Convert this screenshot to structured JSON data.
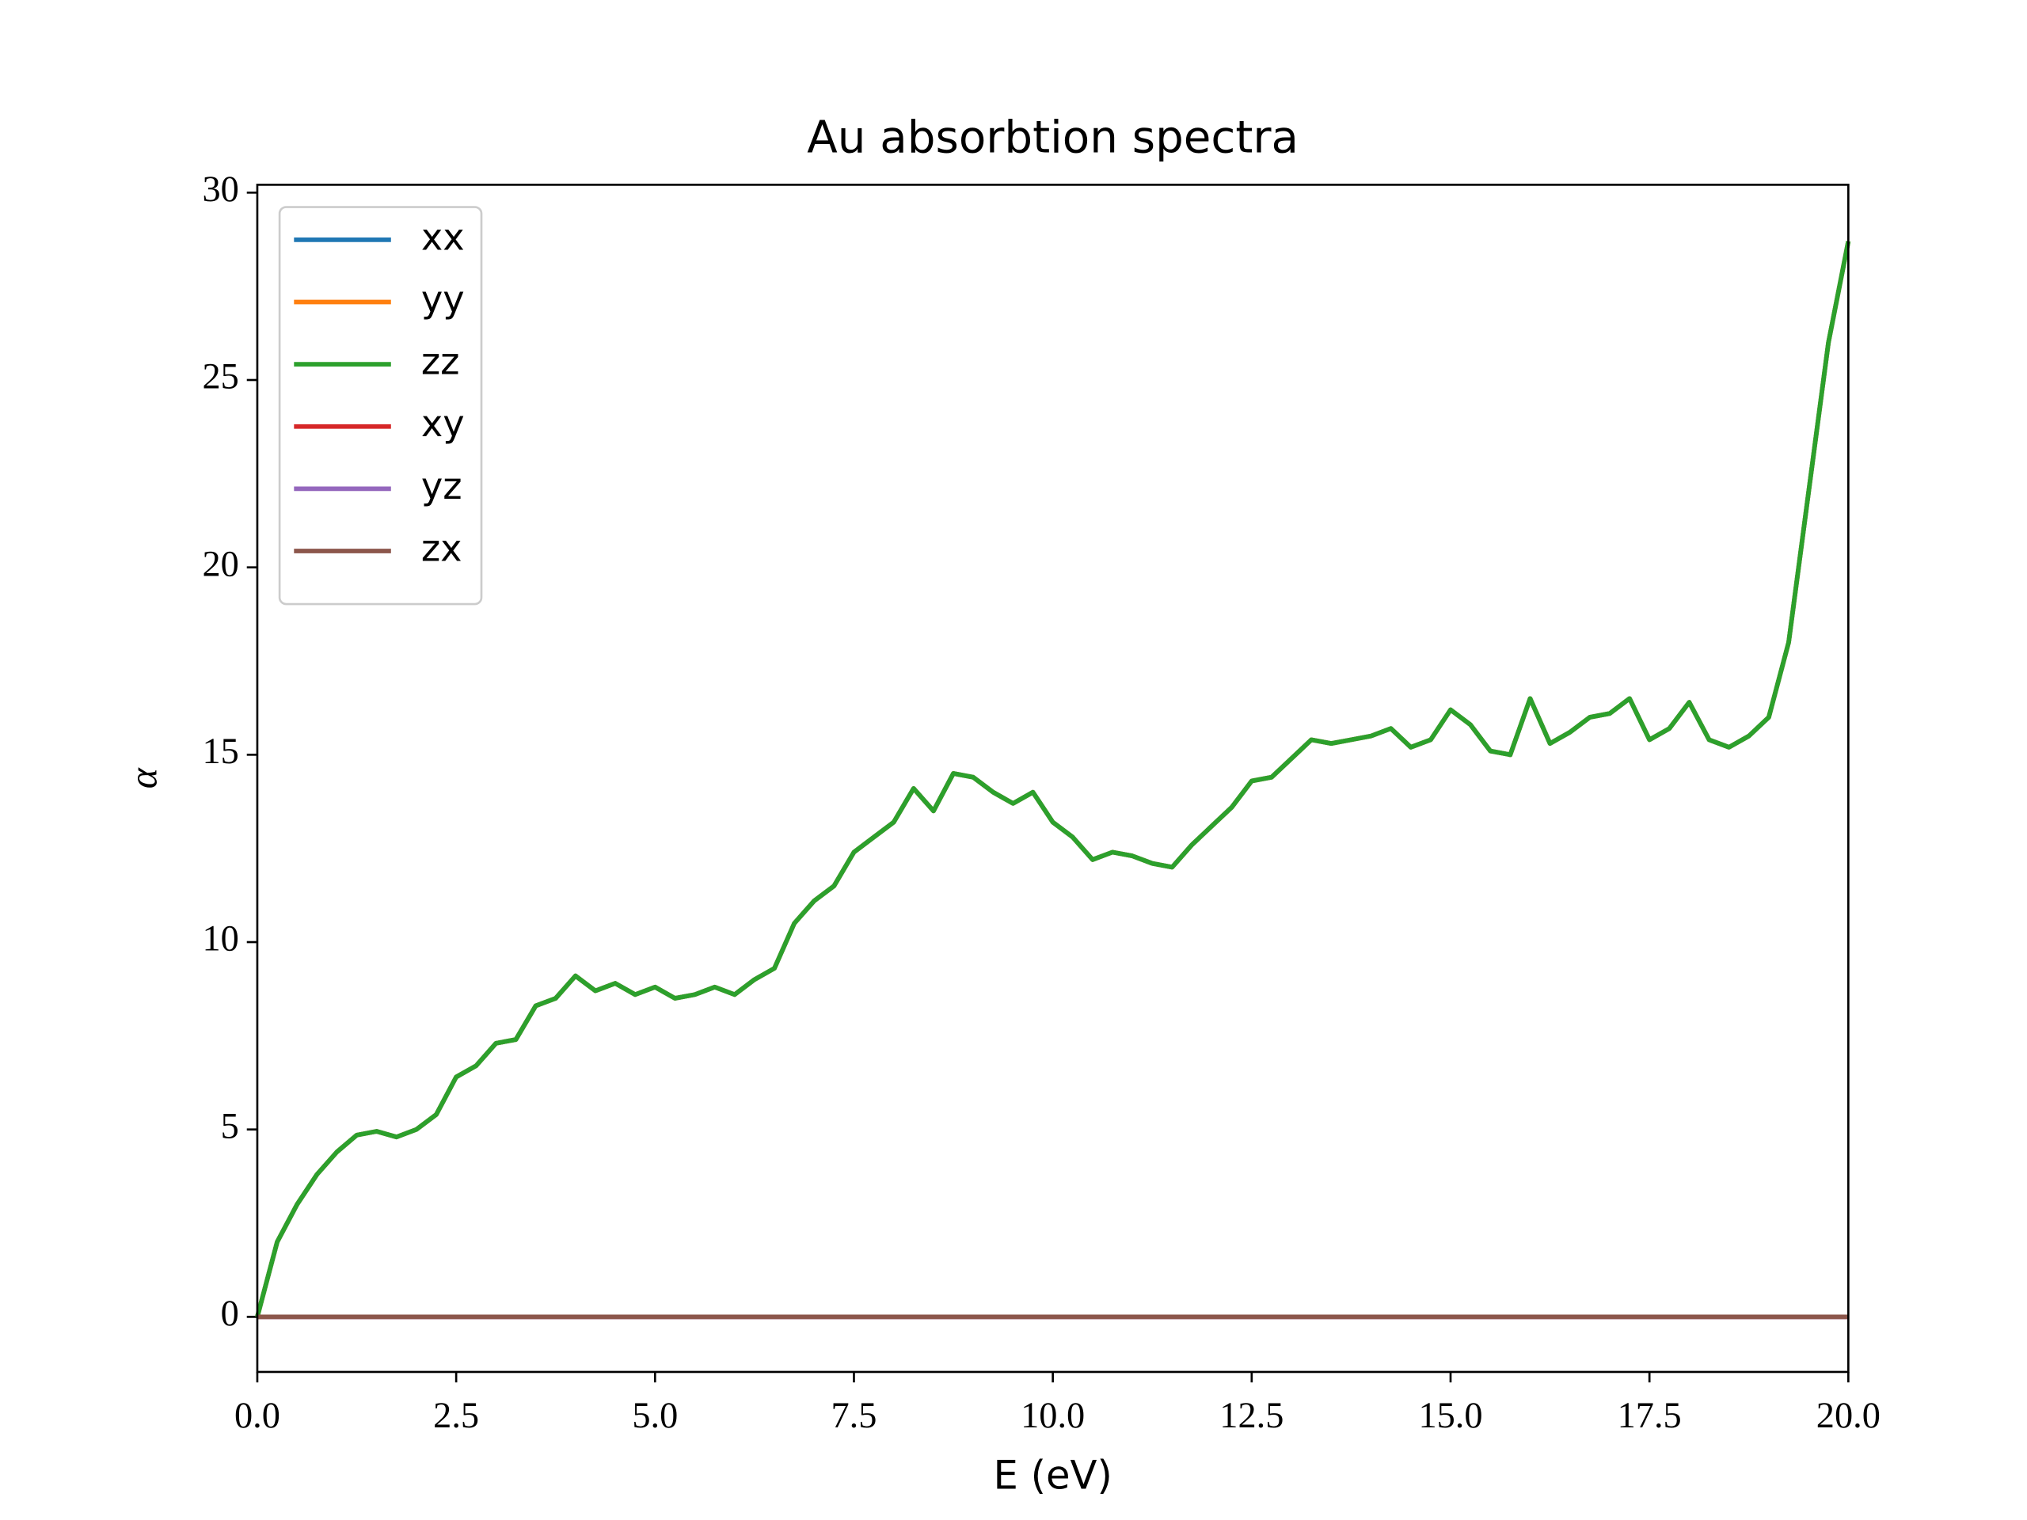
{
  "chart_data": {
    "type": "line",
    "title": "Au absorbtion spectra",
    "x_label": "E (eV)",
    "y_label": "α",
    "x": [
      0,
      0.25,
      0.5,
      0.75,
      1,
      1.25,
      1.5,
      1.75,
      2,
      2.25,
      2.5,
      2.75,
      3,
      3.25,
      3.5,
      3.75,
      4,
      4.25,
      4.5,
      4.75,
      5,
      5.25,
      5.5,
      5.75,
      6,
      6.25,
      6.5,
      6.75,
      7,
      7.25,
      7.5,
      7.75,
      8,
      8.25,
      8.5,
      8.75,
      9,
      9.25,
      9.5,
      9.75,
      10,
      10.25,
      10.5,
      10.75,
      11,
      11.25,
      11.5,
      11.75,
      12,
      12.25,
      12.5,
      12.75,
      13,
      13.25,
      13.5,
      13.75,
      14,
      14.25,
      14.5,
      14.75,
      15,
      15.25,
      15.5,
      15.75,
      16,
      16.25,
      16.5,
      16.75,
      17,
      17.25,
      17.5,
      17.75,
      18,
      18.25,
      18.5,
      18.75,
      19,
      19.25,
      19.5,
      19.75,
      20
    ],
    "series": [
      {
        "name": "xx",
        "color": "#1f77b4",
        "values": [
          0,
          2.0,
          3.0,
          3.8,
          4.4,
          4.85,
          4.95,
          4.8,
          5.0,
          5.4,
          6.4,
          6.7,
          7.3,
          7.4,
          8.3,
          8.5,
          9.1,
          8.7,
          8.9,
          8.6,
          8.8,
          8.5,
          8.6,
          8.8,
          8.6,
          9.0,
          9.3,
          10.5,
          11.1,
          11.5,
          12.4,
          12.8,
          13.2,
          14.1,
          13.5,
          14.5,
          14.4,
          14.0,
          13.7,
          14.0,
          13.2,
          12.8,
          12.2,
          12.4,
          12.3,
          12.1,
          12.0,
          12.6,
          13.1,
          13.6,
          14.3,
          14.4,
          14.9,
          15.4,
          15.3,
          15.4,
          15.5,
          15.7,
          15.2,
          15.4,
          16.2,
          15.8,
          15.1,
          15.0,
          16.5,
          15.3,
          15.6,
          16.0,
          16.1,
          16.5,
          15.4,
          15.7,
          16.4,
          15.4,
          15.2,
          15.5,
          16.0,
          18.0,
          22.0,
          26.0,
          28.7
        ]
      },
      {
        "name": "yy",
        "color": "#ff7f0e",
        "values": [
          0,
          2.0,
          3.0,
          3.8,
          4.4,
          4.85,
          4.95,
          4.8,
          5.0,
          5.4,
          6.4,
          6.7,
          7.3,
          7.4,
          8.3,
          8.5,
          9.1,
          8.7,
          8.9,
          8.6,
          8.8,
          8.5,
          8.6,
          8.8,
          8.6,
          9.0,
          9.3,
          10.5,
          11.1,
          11.5,
          12.4,
          12.8,
          13.2,
          14.1,
          13.5,
          14.5,
          14.4,
          14.0,
          13.7,
          14.0,
          13.2,
          12.8,
          12.2,
          12.4,
          12.3,
          12.1,
          12.0,
          12.6,
          13.1,
          13.6,
          14.3,
          14.4,
          14.9,
          15.4,
          15.3,
          15.4,
          15.5,
          15.7,
          15.2,
          15.4,
          16.2,
          15.8,
          15.1,
          15.0,
          16.5,
          15.3,
          15.6,
          16.0,
          16.1,
          16.5,
          15.4,
          15.7,
          16.4,
          15.4,
          15.2,
          15.5,
          16.0,
          18.0,
          22.0,
          26.0,
          28.7
        ]
      },
      {
        "name": "zz",
        "color": "#2ca02c",
        "values": [
          0,
          2.0,
          3.0,
          3.8,
          4.4,
          4.85,
          4.95,
          4.8,
          5.0,
          5.4,
          6.4,
          6.7,
          7.3,
          7.4,
          8.3,
          8.5,
          9.1,
          8.7,
          8.9,
          8.6,
          8.8,
          8.5,
          8.6,
          8.8,
          8.6,
          9.0,
          9.3,
          10.5,
          11.1,
          11.5,
          12.4,
          12.8,
          13.2,
          14.1,
          13.5,
          14.5,
          14.4,
          14.0,
          13.7,
          14.0,
          13.2,
          12.8,
          12.2,
          12.4,
          12.3,
          12.1,
          12.0,
          12.6,
          13.1,
          13.6,
          14.3,
          14.4,
          14.9,
          15.4,
          15.3,
          15.4,
          15.5,
          15.7,
          15.2,
          15.4,
          16.2,
          15.8,
          15.1,
          15.0,
          16.5,
          15.3,
          15.6,
          16.0,
          16.1,
          16.5,
          15.4,
          15.7,
          16.4,
          15.4,
          15.2,
          15.5,
          16.0,
          18.0,
          22.0,
          26.0,
          28.7
        ]
      },
      {
        "name": "xy",
        "color": "#d62728",
        "values": [
          0,
          0,
          0,
          0,
          0,
          0,
          0,
          0,
          0,
          0,
          0,
          0,
          0,
          0,
          0,
          0,
          0,
          0,
          0,
          0,
          0,
          0,
          0,
          0,
          0,
          0,
          0,
          0,
          0,
          0,
          0,
          0,
          0,
          0,
          0,
          0,
          0,
          0,
          0,
          0,
          0,
          0,
          0,
          0,
          0,
          0,
          0,
          0,
          0,
          0,
          0,
          0,
          0,
          0,
          0,
          0,
          0,
          0,
          0,
          0,
          0,
          0,
          0,
          0,
          0,
          0,
          0,
          0,
          0,
          0,
          0,
          0,
          0,
          0,
          0,
          0,
          0,
          0,
          0,
          0,
          0
        ]
      },
      {
        "name": "yz",
        "color": "#9467bd",
        "values": [
          0,
          0,
          0,
          0,
          0,
          0,
          0,
          0,
          0,
          0,
          0,
          0,
          0,
          0,
          0,
          0,
          0,
          0,
          0,
          0,
          0,
          0,
          0,
          0,
          0,
          0,
          0,
          0,
          0,
          0,
          0,
          0,
          0,
          0,
          0,
          0,
          0,
          0,
          0,
          0,
          0,
          0,
          0,
          0,
          0,
          0,
          0,
          0,
          0,
          0,
          0,
          0,
          0,
          0,
          0,
          0,
          0,
          0,
          0,
          0,
          0,
          0,
          0,
          0,
          0,
          0,
          0,
          0,
          0,
          0,
          0,
          0,
          0,
          0,
          0,
          0,
          0,
          0,
          0,
          0,
          0
        ]
      },
      {
        "name": "zx",
        "color": "#8c564b",
        "values": [
          0,
          0,
          0,
          0,
          0,
          0,
          0,
          0,
          0,
          0,
          0,
          0,
          0,
          0,
          0,
          0,
          0,
          0,
          0,
          0,
          0,
          0,
          0,
          0,
          0,
          0,
          0,
          0,
          0,
          0,
          0,
          0,
          0,
          0,
          0,
          0,
          0,
          0,
          0,
          0,
          0,
          0,
          0,
          0,
          0,
          0,
          0,
          0,
          0,
          0,
          0,
          0,
          0,
          0,
          0,
          0,
          0,
          0,
          0,
          0,
          0,
          0,
          0,
          0,
          0,
          0,
          0,
          0,
          0,
          0,
          0,
          0,
          0,
          0,
          0,
          0,
          0,
          0,
          0,
          0,
          0
        ]
      }
    ],
    "xlim": [
      0,
      20
    ],
    "ylim": [
      -1.47,
      30.21
    ],
    "xticks": [
      {
        "value": 0,
        "label": "0.0"
      },
      2.5,
      {
        "value": 5,
        "label": "5.0"
      },
      7.5,
      {
        "value": 10,
        "label": "10.0"
      },
      12.5,
      {
        "value": 15,
        "label": "15.0"
      },
      17.5,
      {
        "value": 20,
        "label": "20.0"
      }
    ],
    "yticks": [
      0,
      5,
      10,
      15,
      20,
      25,
      30
    ],
    "grid": false,
    "legend": "upper left"
  }
}
